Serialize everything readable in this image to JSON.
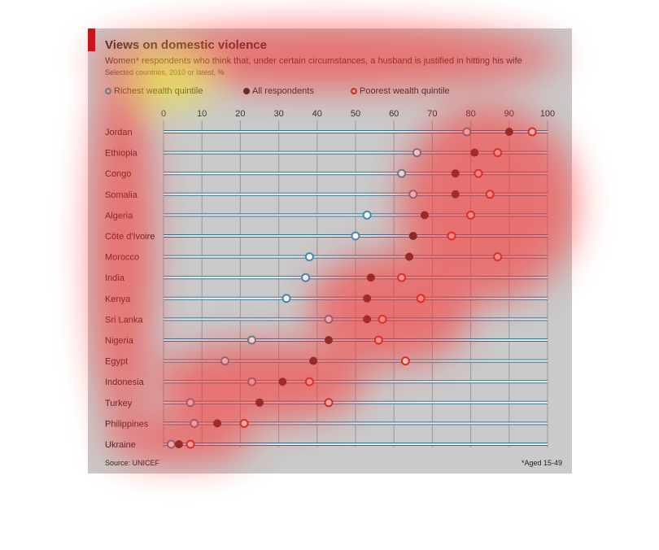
{
  "chart_data": {
    "type": "scatter",
    "title": "Views on domestic violence",
    "subtitle": "Women* respondents who think that, under certain circumstances, a husband is justified in hitting his wife",
    "note": "Selected countries, 2010 or latest, %",
    "source": "Source: UNICEF",
    "footnote": "*Aged 15-49",
    "xlim": [
      0,
      100
    ],
    "xticks": [
      0,
      10,
      20,
      30,
      40,
      50,
      60,
      70,
      80,
      90,
      100
    ],
    "grid": true,
    "legend_position": "top",
    "categories": [
      "Jordan",
      "Ethiopia",
      "Congo",
      "Somalia",
      "Algeria",
      "Côte d'Ivoire",
      "Morocco",
      "India",
      "Kenya",
      "Sri Lanka",
      "Nigeria",
      "Egypt",
      "Indonesia",
      "Turkey",
      "Philippines",
      "Ukraine"
    ],
    "series": [
      {
        "name": "Richest wealth quintile",
        "color": "#3a8fb5",
        "style": "hollow",
        "values": [
          79,
          66,
          62,
          65,
          53,
          50,
          38,
          37,
          32,
          43,
          23,
          16,
          23,
          7,
          8,
          2
        ]
      },
      {
        "name": "All respondents",
        "color": "#3b2a2a",
        "style": "filled",
        "values": [
          90,
          81,
          76,
          76,
          68,
          65,
          64,
          54,
          53,
          53,
          43,
          39,
          31,
          25,
          14,
          4
        ]
      },
      {
        "name": "Poorest wealth quintile",
        "color": "#b5331f",
        "style": "hollow",
        "values": [
          96,
          87,
          82,
          85,
          80,
          75,
          87,
          62,
          67,
          57,
          56,
          63,
          38,
          43,
          21,
          7
        ]
      }
    ]
  }
}
